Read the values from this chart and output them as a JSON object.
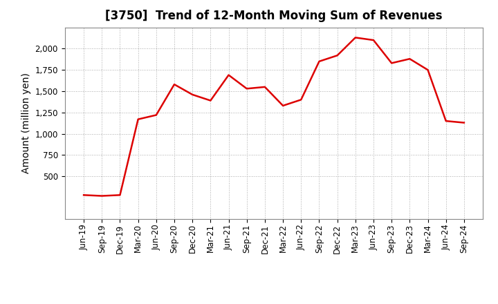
{
  "title": "[3750]  Trend of 12-Month Moving Sum of Revenues",
  "ylabel": "Amount (million yen)",
  "line_color": "#dd0000",
  "background_color": "#ffffff",
  "plot_bg_color": "#ffffff",
  "grid_color": "#aaaaaa",
  "title_fontsize": 12,
  "label_fontsize": 10,
  "tick_fontsize": 8.5,
  "x_labels": [
    "Jun-19",
    "Sep-19",
    "Dec-19",
    "Mar-20",
    "Jun-20",
    "Sep-20",
    "Dec-20",
    "Mar-21",
    "Jun-21",
    "Sep-21",
    "Dec-21",
    "Mar-22",
    "Jun-22",
    "Sep-22",
    "Dec-22",
    "Mar-23",
    "Jun-23",
    "Sep-23",
    "Dec-23",
    "Mar-24",
    "Jun-24",
    "Sep-24"
  ],
  "y_values": [
    280,
    270,
    280,
    1170,
    1220,
    1580,
    1460,
    1390,
    1690,
    1530,
    1550,
    1330,
    1400,
    1850,
    1920,
    2130,
    2100,
    1830,
    1880,
    1750,
    1150,
    1130
  ],
  "ylim": [
    0,
    2250
  ],
  "yticks": [
    500,
    750,
    1000,
    1250,
    1500,
    1750,
    2000
  ],
  "linewidth": 1.8
}
